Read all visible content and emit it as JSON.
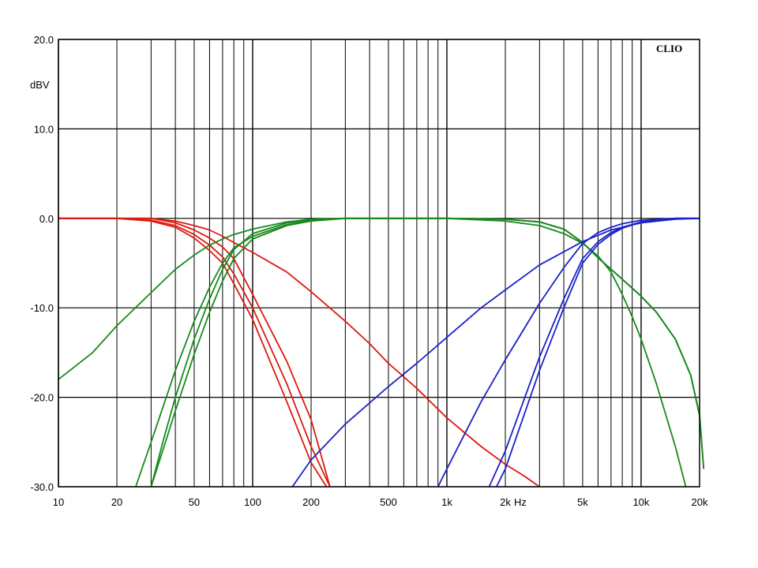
{
  "chart_data": {
    "type": "line",
    "title": "",
    "brand": "CLIO",
    "xlabel": "Hz",
    "ylabel": "dBV",
    "x_scale": "log",
    "xlim": [
      10,
      20000
    ],
    "ylim": [
      -30,
      20
    ],
    "grid": true,
    "legend": "none",
    "colors": {
      "low": "#dd1a10",
      "mid": "#178a1c",
      "high": "#1a22c8",
      "grid": "#000000"
    },
    "x_major_ticks": [
      10,
      100,
      1000,
      10000
    ],
    "x_tick_labels": [
      {
        "value": 10,
        "label": "10"
      },
      {
        "value": 20,
        "label": "20"
      },
      {
        "value": 50,
        "label": "50"
      },
      {
        "value": 100,
        "label": "100"
      },
      {
        "value": 200,
        "label": "200"
      },
      {
        "value": 500,
        "label": "500"
      },
      {
        "value": 1000,
        "label": "1k"
      },
      {
        "value": 2000,
        "label": "2k"
      },
      {
        "value": 5000,
        "label": "5k"
      },
      {
        "value": 10000,
        "label": "10k"
      },
      {
        "value": 20000,
        "label": "20k"
      }
    ],
    "y_tick_labels": [
      {
        "value": 20,
        "label": "20.0"
      },
      {
        "value": 10,
        "label": "10.0"
      },
      {
        "value": 0,
        "label": "0.0"
      },
      {
        "value": -10,
        "label": "-10.0"
      },
      {
        "value": -20,
        "label": "-20.0"
      },
      {
        "value": -30,
        "label": "-30.0"
      }
    ],
    "series": [
      {
        "group": "low",
        "x": [
          10,
          20,
          30,
          40,
          50,
          60,
          70,
          80,
          100,
          150,
          200,
          240
        ],
        "y": [
          0,
          0,
          -0.3,
          -1,
          -2.2,
          -3.6,
          -5,
          -7.3,
          -11.3,
          -20.5,
          -27.3,
          -30
        ]
      },
      {
        "group": "low",
        "x": [
          10,
          20,
          30,
          40,
          50,
          60,
          70,
          80,
          100,
          150,
          200,
          250
        ],
        "y": [
          0,
          0,
          -0.2,
          -0.8,
          -1.8,
          -3,
          -4.3,
          -6.2,
          -10,
          -18.5,
          -25.5,
          -30
        ]
      },
      {
        "group": "low",
        "x": [
          10,
          20,
          30,
          40,
          50,
          60,
          70,
          80,
          100,
          150,
          200,
          250
        ],
        "y": [
          0,
          0,
          0,
          -0.5,
          -1.3,
          -2.2,
          -3.2,
          -4.5,
          -8.5,
          -16,
          -22.5,
          -30
        ]
      },
      {
        "group": "low",
        "x": [
          10,
          20,
          30,
          40,
          50,
          60,
          70,
          80,
          100,
          150,
          200,
          300,
          400,
          500,
          700,
          1000,
          1500,
          2000,
          2500,
          3000
        ],
        "y": [
          0,
          0,
          0,
          -0.3,
          -0.8,
          -1.3,
          -2,
          -2.7,
          -3.8,
          -6,
          -8.2,
          -11.5,
          -14,
          -16.2,
          -19,
          -22.3,
          -25.5,
          -27.5,
          -28.8,
          -30
        ]
      },
      {
        "group": "mid",
        "x": [
          10,
          15,
          20,
          30,
          40,
          50,
          60,
          70,
          80,
          100,
          150,
          200,
          300,
          400,
          500,
          1000,
          2000,
          3000,
          4000,
          5000,
          6000,
          7000,
          8000,
          9000,
          10000,
          12000,
          15000,
          17000
        ],
        "y": [
          -18,
          -15,
          -12,
          -8.3,
          -5.7,
          -4.1,
          -3,
          -2.3,
          -1.8,
          -1.2,
          -0.4,
          -0.1,
          0,
          0,
          0,
          0,
          -0.3,
          -0.8,
          -1.7,
          -2.8,
          -4.2,
          -6,
          -8.5,
          -11,
          -13.5,
          -18.5,
          -25.5,
          -30
        ]
      },
      {
        "group": "mid",
        "x": [
          25,
          30,
          40,
          50,
          60,
          70,
          80,
          100,
          150,
          200,
          300,
          500,
          1000,
          2000,
          3000,
          4000,
          5000,
          6000,
          8000,
          10000,
          12000,
          15000,
          18000,
          20000
        ],
        "y": [
          -30,
          -25,
          -17,
          -11.5,
          -7.7,
          -5,
          -3.3,
          -2,
          -0.7,
          -0.2,
          0,
          0,
          0,
          -0.1,
          -0.4,
          -1.2,
          -2.7,
          -4.4,
          -6.8,
          -8.7,
          -10.5,
          -13.5,
          -17.5,
          -22
        ]
      },
      {
        "group": "mid",
        "x": [
          30,
          35,
          40,
          50,
          60,
          70,
          80,
          100,
          150,
          200,
          300,
          500,
          1000,
          2000,
          3000,
          4000,
          5000,
          6000,
          8000,
          10000,
          12000,
          15000,
          18000,
          20000,
          21000
        ],
        "y": [
          -30,
          -25.5,
          -21.5,
          -15.2,
          -10.5,
          -7,
          -4.5,
          -2.3,
          -0.8,
          -0.3,
          0,
          0,
          0,
          -0.1,
          -0.4,
          -1.2,
          -2.7,
          -4.4,
          -6.8,
          -8.7,
          -10.5,
          -13.5,
          -17.5,
          -22,
          -28
        ]
      },
      {
        "group": "mid",
        "x": [
          30,
          35,
          40,
          50,
          60,
          70,
          80,
          100,
          150,
          200,
          300,
          500,
          1000,
          2000,
          3000,
          4000,
          5000,
          6000,
          8000,
          10000,
          12000,
          15000,
          18000,
          20000,
          21000
        ],
        "y": [
          -30,
          -24.5,
          -20,
          -13.5,
          -9,
          -5.7,
          -3.5,
          -1.7,
          -0.5,
          -0.1,
          0,
          0,
          0,
          -0.1,
          -0.4,
          -1.2,
          -2.7,
          -4.4,
          -6.8,
          -8.7,
          -10.5,
          -13.5,
          -17.5,
          -22,
          -28
        ]
      },
      {
        "group": "high",
        "x": [
          160,
          200,
          300,
          500,
          700,
          1000,
          1500,
          2000,
          3000,
          5000,
          7000,
          10000,
          15000,
          20000
        ],
        "y": [
          -30,
          -27,
          -23,
          -18.8,
          -16.2,
          -13.3,
          -10,
          -8,
          -5.2,
          -2.6,
          -1.3,
          -0.5,
          -0.1,
          0
        ]
      },
      {
        "group": "high",
        "x": [
          900,
          1000,
          1500,
          2000,
          3000,
          4000,
          5000,
          6000,
          7000,
          8000,
          10000,
          15000,
          20000
        ],
        "y": [
          -30,
          -28,
          -20.5,
          -15.8,
          -9.5,
          -5.5,
          -2.8,
          -1.6,
          -1,
          -0.6,
          -0.2,
          0,
          0
        ]
      },
      {
        "group": "high",
        "x": [
          1650,
          2000,
          3000,
          4000,
          5000,
          6000,
          7000,
          8000,
          10000,
          15000,
          20000
        ],
        "y": [
          -30,
          -26,
          -15.5,
          -9,
          -4.5,
          -2.6,
          -1.6,
          -1,
          -0.4,
          0,
          0
        ]
      },
      {
        "group": "high",
        "x": [
          1800,
          2000,
          3000,
          4000,
          5000,
          6000,
          7000,
          8000,
          10000,
          15000,
          20000
        ],
        "y": [
          -30,
          -28,
          -17,
          -10,
          -5,
          -2.9,
          -1.8,
          -1.1,
          -0.4,
          0,
          0
        ]
      }
    ]
  }
}
